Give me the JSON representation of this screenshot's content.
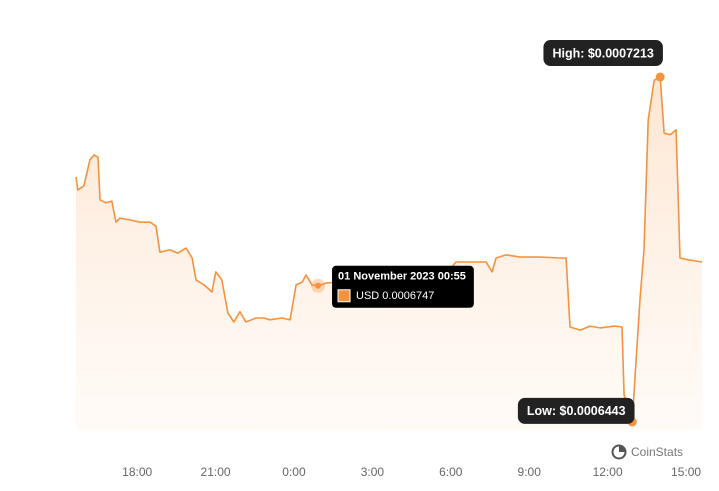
{
  "chart_data": {
    "type": "area",
    "x": [
      -8.34,
      -8.27,
      -8.04,
      -7.81,
      -7.65,
      -7.5,
      -7.42,
      -7.19,
      -6.97,
      -6.81,
      -6.66,
      -6.28,
      -5.89,
      -5.51,
      -5.28,
      -5.13,
      -4.75,
      -4.44,
      -4.13,
      -3.9,
      -3.75,
      -3.44,
      -3.14,
      -2.99,
      -2.76,
      -2.53,
      -2.3,
      -2.07,
      -1.84,
      -1.45,
      -1.15,
      -0.92,
      -0.46,
      -0.15,
      0.08,
      0.31,
      0.46,
      0.69,
      0.92,
      1.22,
      1.61,
      1.99,
      2.53,
      3.29,
      4.06,
      4.82,
      5.59,
      6.2,
      6.74,
      7.35,
      7.58,
      7.73,
      8.11,
      8.65,
      9.41,
      10.18,
      10.41,
      10.56,
      10.95,
      11.33,
      11.71,
      12.25,
      12.55,
      12.63,
      12.94,
      13.09,
      13.24,
      13.39,
      13.55,
      13.78,
      14.01,
      14.16,
      14.39,
      14.62,
      14.77,
      15.08,
      15.61
    ],
    "values": [
      0.000699,
      0.0006961,
      0.000697,
      0.0007028,
      0.0007039,
      0.0007034,
      0.0006939,
      0.0006932,
      0.0006936,
      0.0006889,
      0.0006898,
      0.0006894,
      0.0006889,
      0.0006889,
      0.000688,
      0.0006822,
      0.0006827,
      0.000682,
      0.0006831,
      0.0006809,
      0.000676,
      0.0006749,
      0.0006733,
      0.0006778,
      0.000676,
      0.0006686,
      0.0006666,
      0.0006689,
      0.0006666,
      0.0006675,
      0.0006675,
      0.0006671,
      0.0006675,
      0.0006671,
      0.0006749,
      0.0006755,
      0.0006771,
      0.0006749,
      0.0006747,
      0.0006753,
      0.0006755,
      0.0006755,
      0.0006753,
      0.0006755,
      0.0006755,
      0.000676,
      0.0006758,
      0.00068,
      0.00068,
      0.00068,
      0.0006778,
      0.0006809,
      0.0006816,
      0.0006811,
      0.0006811,
      0.0006809,
      0.0006809,
      0.0006655,
      0.0006648,
      0.0006657,
      0.0006653,
      0.0006657,
      0.0006655,
      0.0006503,
      0.0006443,
      0.0006581,
      0.000672,
      0.0006827,
      0.0007117,
      0.0007206,
      0.0007213,
      0.0007088,
      0.0007084,
      0.0007095,
      0.0006809,
      0.0006805,
      0.00068
    ],
    "color": "#f5923e",
    "xlim": [
      -8.34,
      15.61
    ],
    "ylim": [
      0.0006425,
      0.0007318
    ],
    "xticks": [
      {
        "value": -6,
        "label": "18:00"
      },
      {
        "value": -3,
        "label": "21:00"
      },
      {
        "value": 0,
        "label": "0:00"
      },
      {
        "value": 3,
        "label": "3:00"
      },
      {
        "value": 6,
        "label": "6:00"
      },
      {
        "value": 9,
        "label": "9:00"
      },
      {
        "value": 12,
        "label": "12:00"
      },
      {
        "value": 15,
        "label": "15:00"
      }
    ],
    "annotations": [
      {
        "label": "High: $0.0007213",
        "x": 14.01,
        "value": 0.0007213
      },
      {
        "label": "Low: $0.0006443",
        "x": 12.94,
        "value": 0.0006443
      }
    ],
    "tooltip": {
      "title": "01 November 2023 00:55",
      "label": "USD 0.0006747",
      "x": 0.92,
      "value": 0.0006747
    },
    "brand": "CoinStats"
  }
}
